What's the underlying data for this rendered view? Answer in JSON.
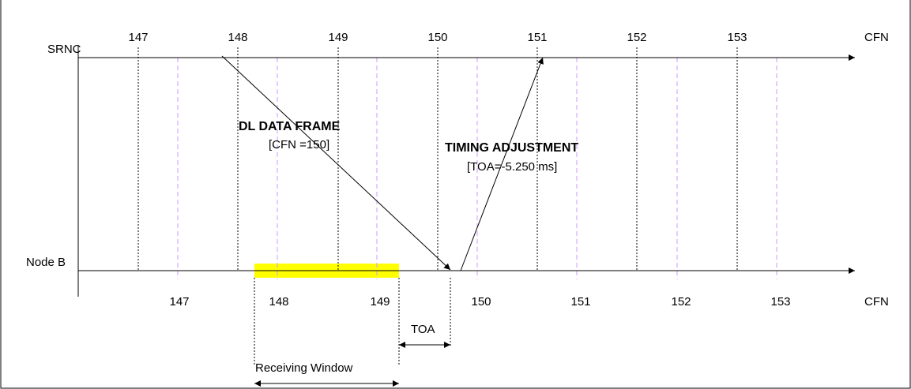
{
  "rows": {
    "srnc": {
      "label": "SRNC",
      "axis_label": "CFN",
      "frame_ticks": [
        "147",
        "148",
        "149",
        "150",
        "151",
        "152",
        "153"
      ]
    },
    "nodeb": {
      "label": "Node B",
      "axis_label": "CFN",
      "frame_ticks": [
        "147",
        "148",
        "149",
        "150",
        "151",
        "152",
        "153"
      ]
    }
  },
  "messages": {
    "dl_frame": {
      "title": "DL DATA FRAME",
      "detail": "[CFN =150]"
    },
    "timing_adj": {
      "title": "TIMING ADJUSTMENT",
      "detail": "[TOA=-5.250 ms]"
    }
  },
  "intervals": {
    "toa": "TOA",
    "receiving_window": "Receiving Window"
  },
  "colors": {
    "receiving_window_fill": "#ffff00",
    "frame_grid_srnc": "#000000",
    "frame_grid_nodeb": "#cc99ff"
  }
}
